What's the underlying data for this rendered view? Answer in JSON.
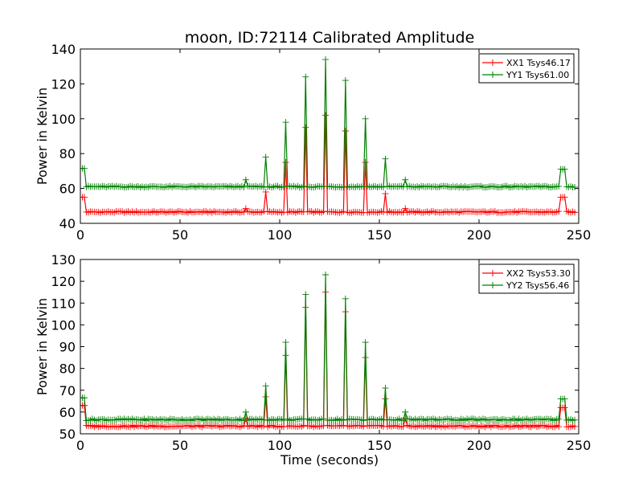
{
  "chart_data": [
    {
      "type": "line",
      "title": "moon, ID:72114 Calibrated Amplitude",
      "xlabel": "",
      "ylabel": "Power in Kelvin",
      "xlim": [
        0,
        250
      ],
      "ylim": [
        40,
        140
      ],
      "xticks": [
        0,
        50,
        100,
        150,
        200,
        250
      ],
      "yticks": [
        40,
        60,
        80,
        100,
        120,
        140
      ],
      "grid": false,
      "legend_position": "top-right",
      "baseline_ramp": [
        [
          0,
          55
        ],
        [
          2,
          55
        ],
        [
          3,
          47
        ]
      ],
      "series": [
        {
          "name": "XX1 Tsys46.17",
          "color": "#ff0000",
          "marker": "+",
          "baseline": 46.5,
          "initial": 55,
          "peaks": [
            [
              83,
              48.5
            ],
            [
              93,
              58
            ],
            [
              103,
              75
            ],
            [
              113,
              95
            ],
            [
              123,
              102
            ],
            [
              133,
              93
            ],
            [
              143,
              75
            ],
            [
              153,
              57
            ],
            [
              163,
              48.5
            ],
            [
              242,
              55
            ]
          ]
        },
        {
          "name": "YY1 Tsys61.00",
          "color": "#008000",
          "marker": "+",
          "baseline": 61,
          "initial": 71.5,
          "peaks": [
            [
              83,
              65
            ],
            [
              93,
              78
            ],
            [
              103,
              98
            ],
            [
              113,
              124
            ],
            [
              123,
              134
            ],
            [
              133,
              122
            ],
            [
              143,
              100
            ],
            [
              153,
              77
            ],
            [
              163,
              65
            ],
            [
              242,
              71
            ]
          ]
        }
      ]
    },
    {
      "type": "line",
      "title": "",
      "xlabel": "Time (seconds)",
      "ylabel": "Power in Kelvin",
      "xlim": [
        0,
        250
      ],
      "ylim": [
        50,
        130
      ],
      "xticks": [
        0,
        50,
        100,
        150,
        200,
        250
      ],
      "yticks": [
        50,
        60,
        70,
        80,
        90,
        100,
        110,
        120,
        130
      ],
      "grid": false,
      "legend_position": "top-right",
      "series": [
        {
          "name": "XX2 Tsys53.30",
          "color": "#ff0000",
          "marker": "+",
          "baseline": 53.5,
          "initial": 63,
          "peaks": [
            [
              83,
              57
            ],
            [
              93,
              67
            ],
            [
              103,
              86
            ],
            [
              113,
              108
            ],
            [
              123,
              115
            ],
            [
              133,
              106
            ],
            [
              143,
              85
            ],
            [
              153,
              66
            ],
            [
              163,
              57
            ],
            [
              242,
              62
            ]
          ]
        },
        {
          "name": "YY2 Tsys56.46",
          "color": "#008000",
          "marker": "+",
          "baseline": 56.5,
          "initial": 66.5,
          "peaks": [
            [
              83,
              60
            ],
            [
              93,
              72
            ],
            [
              103,
              92
            ],
            [
              113,
              114
            ],
            [
              123,
              123
            ],
            [
              133,
              112
            ],
            [
              143,
              92
            ],
            [
              153,
              71
            ],
            [
              163,
              60
            ],
            [
              242,
              66
            ]
          ]
        }
      ]
    }
  ]
}
